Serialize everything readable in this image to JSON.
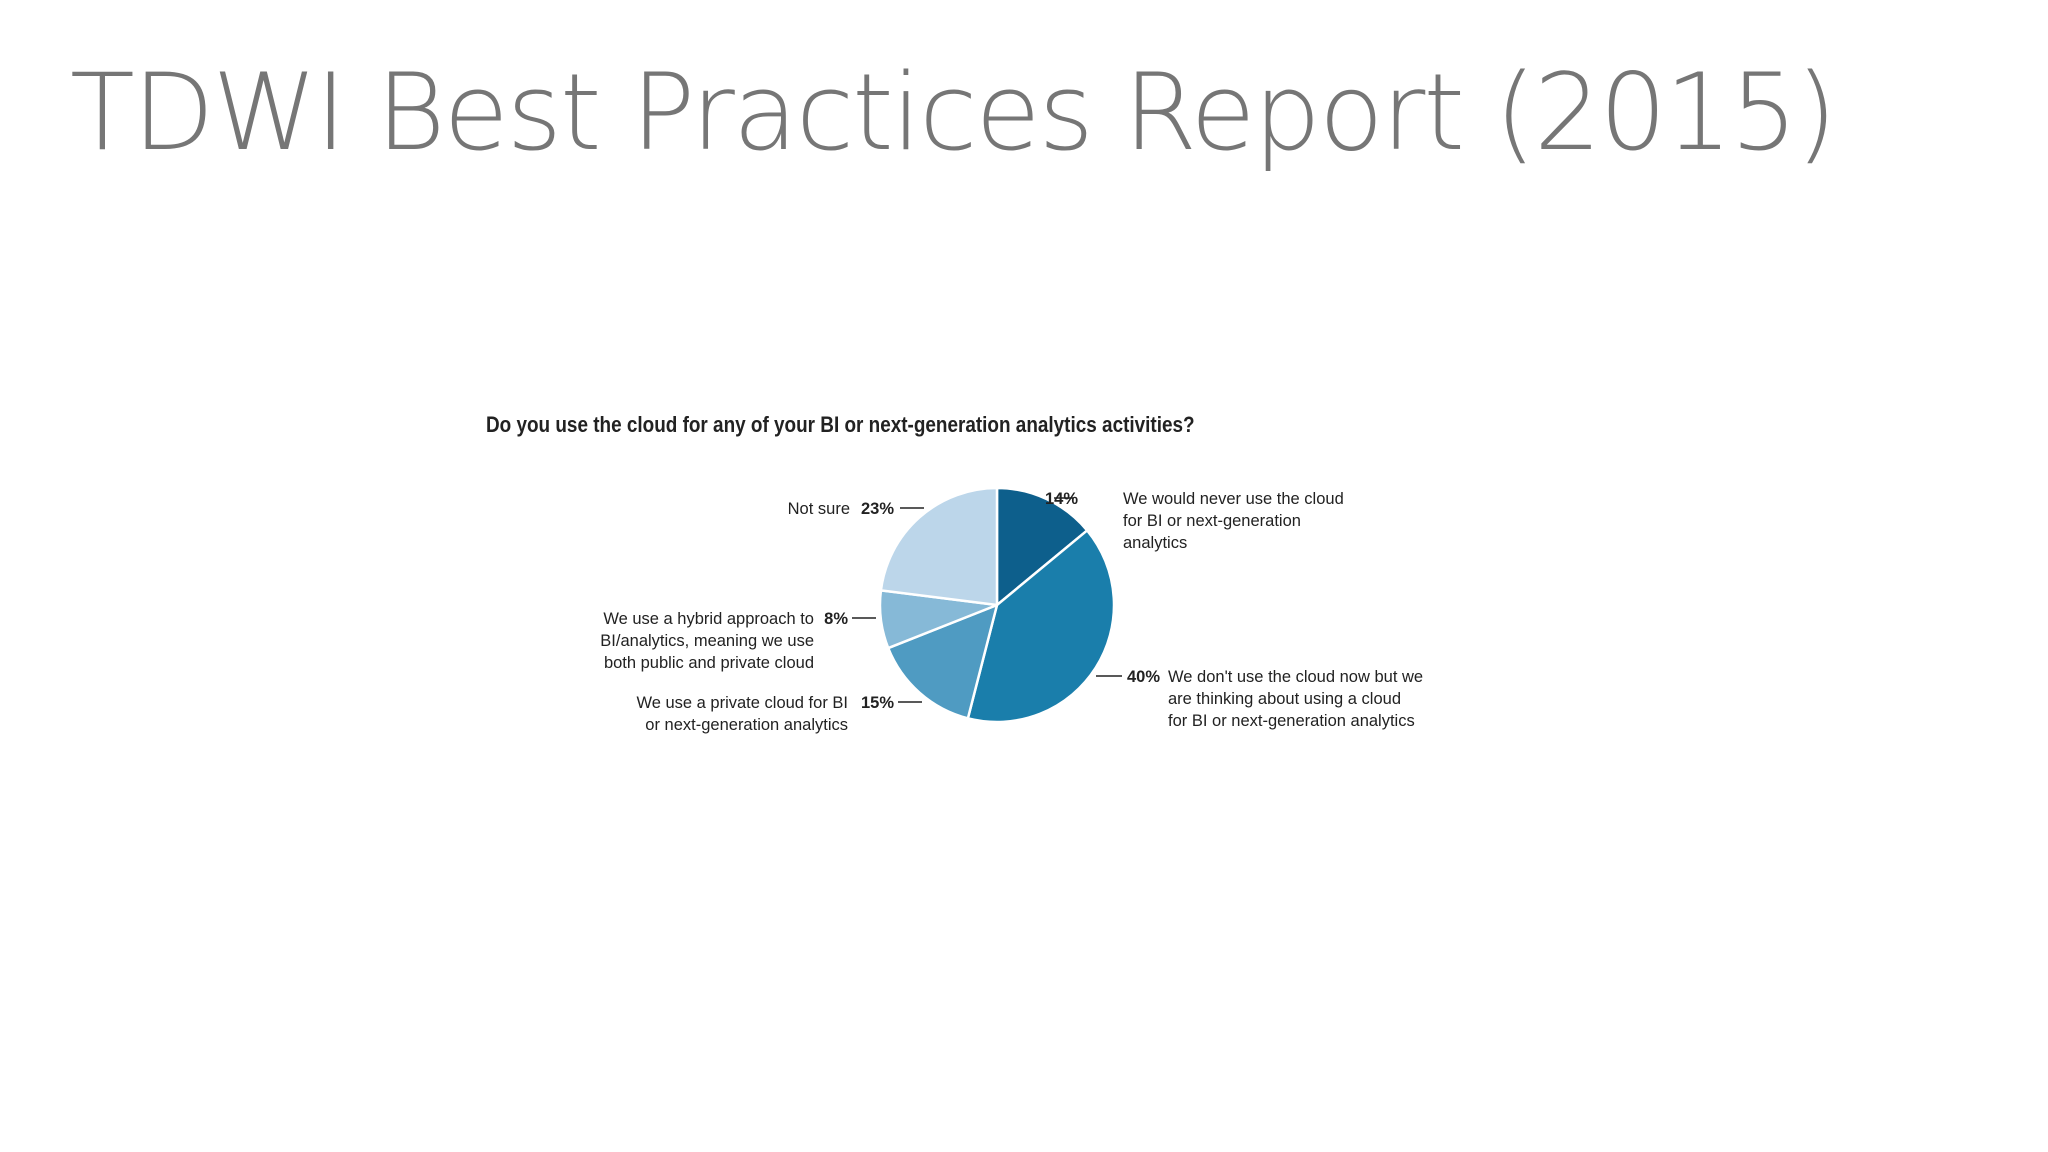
{
  "slide": {
    "title": "TDWI Best Practices Report (2015)"
  },
  "chart_data": {
    "type": "pie",
    "title": "Do you use the cloud for any of your BI or next-generation analytics activities?",
    "slices": [
      {
        "value": 14,
        "label_pct": "14%",
        "label_lines": [
          "We would never use the cloud",
          "for BI or next-generation",
          "analytics"
        ],
        "color": "#0d5f8c"
      },
      {
        "value": 40,
        "label_pct": "40%",
        "label_lines": [
          "We don't use the cloud now but we",
          "are thinking about using a cloud",
          "for BI or next-generation analytics"
        ],
        "color": "#1a7eab"
      },
      {
        "value": 15,
        "label_pct": "15%",
        "label_lines": [
          "We use a private cloud for BI",
          "or next-generation analytics"
        ],
        "color": "#4f9bc2"
      },
      {
        "value": 8,
        "label_pct": "8%",
        "label_lines": [
          "We use a hybrid approach to",
          "BI/analytics, meaning we use",
          "both public and private cloud"
        ],
        "color": "#86b9d7"
      },
      {
        "value": 23,
        "label_pct": "23%",
        "label_lines": [
          "Not sure"
        ],
        "color": "#bcd6ea"
      }
    ]
  }
}
